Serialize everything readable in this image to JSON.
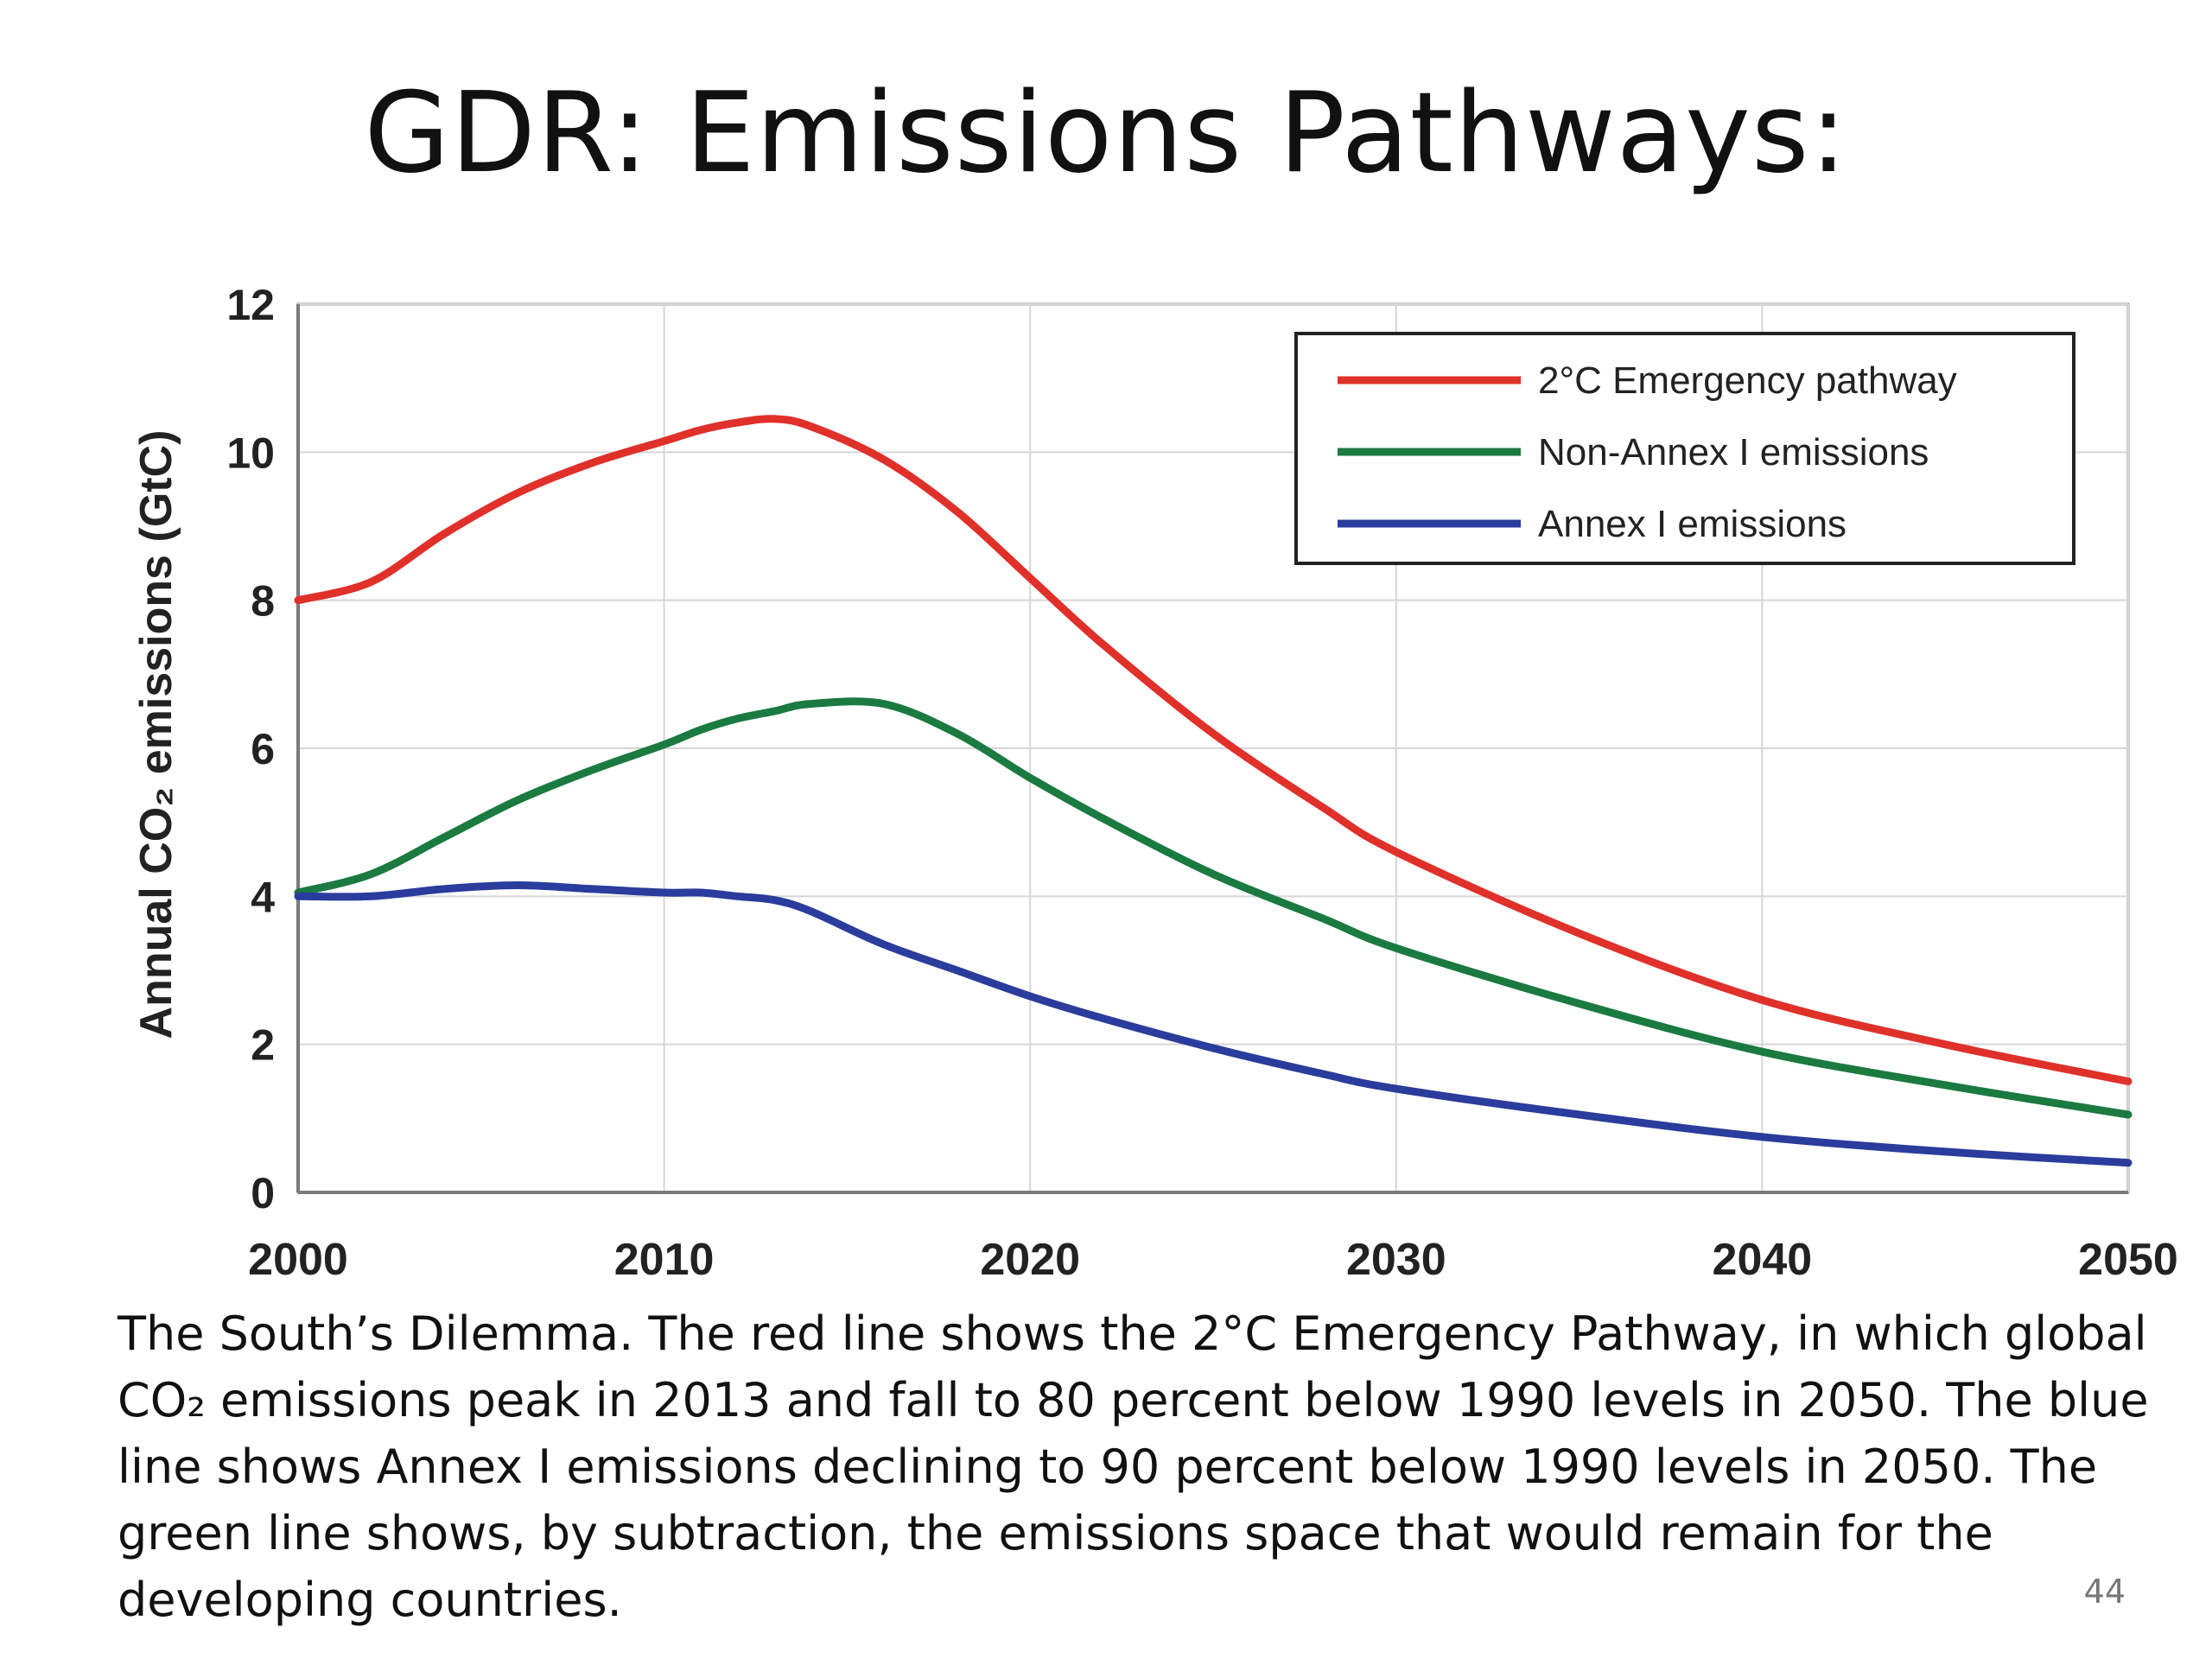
{
  "slide": {
    "title": "GDR: Emissions Pathways:",
    "page_number": "44"
  },
  "caption": {
    "lines": [
      "The South’s Dilemma. The red line shows the 2°C Emergency Pathway, in which global",
      "CO₂ emissions peak in 2013 and fall to 80 percent below 1990 levels in 2050. The blue",
      "line shows Annex I emissions declining to 90 percent below 1990 levels in 2050. The",
      "green line shows, by subtraction, the emissions space that would remain for the",
      "developing countries."
    ]
  },
  "chart_data": {
    "type": "line",
    "title": "",
    "xlabel": "",
    "ylabel": "Annual CO₂ emissions (GtC)",
    "xlim": [
      2000,
      2050
    ],
    "ylim": [
      0,
      12
    ],
    "x_ticks": [
      2000,
      2010,
      2020,
      2030,
      2040,
      2050
    ],
    "y_ticks": [
      0,
      2,
      4,
      6,
      8,
      10,
      12
    ],
    "grid": true,
    "legend_position": "top-right",
    "x": [
      2000,
      2002,
      2004,
      2006,
      2008,
      2010,
      2011,
      2012,
      2013,
      2014,
      2016,
      2018,
      2020,
      2022,
      2025,
      2028,
      2030,
      2035,
      2040,
      2045,
      2050
    ],
    "series": [
      {
        "name": "2°C Emergency pathway",
        "color": "#e0302a",
        "values": [
          8.0,
          8.25,
          8.9,
          9.45,
          9.85,
          10.15,
          10.3,
          10.4,
          10.45,
          10.35,
          9.9,
          9.2,
          8.3,
          7.4,
          6.2,
          5.2,
          4.6,
          3.5,
          2.6,
          2.0,
          1.5
        ]
      },
      {
        "name": "Non-Annex I emissions",
        "color": "#1a7a40",
        "values": [
          4.05,
          4.3,
          4.8,
          5.3,
          5.7,
          6.05,
          6.25,
          6.4,
          6.5,
          6.6,
          6.6,
          6.2,
          5.6,
          5.05,
          4.3,
          3.7,
          3.3,
          2.55,
          1.9,
          1.45,
          1.05
        ]
      },
      {
        "name": "Annex I emissions",
        "color": "#2a3c9c",
        "values": [
          4.0,
          4.0,
          4.1,
          4.15,
          4.1,
          4.05,
          4.05,
          4.0,
          3.95,
          3.8,
          3.35,
          3.0,
          2.65,
          2.35,
          1.95,
          1.6,
          1.4,
          1.05,
          0.75,
          0.55,
          0.4
        ]
      }
    ]
  }
}
